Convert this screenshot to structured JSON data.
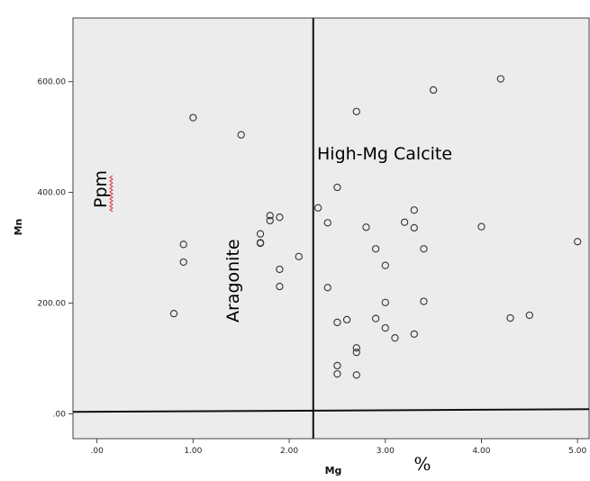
{
  "chart_data": {
    "type": "scatter",
    "title": "",
    "xlabel": "Mg",
    "ylabel": "Mn",
    "x_unit": "%",
    "y_unit": "Ppm",
    "xlim": [
      -0.25,
      5.12
    ],
    "ylim": [
      -45,
      715
    ],
    "x_ticks": [
      0,
      1,
      2,
      3,
      4,
      5
    ],
    "x_tick_labels": [
      ".00",
      "1.00",
      "2.00",
      "3.00",
      "4.00",
      "5.00"
    ],
    "y_ticks": [
      0,
      200,
      400,
      600
    ],
    "y_tick_labels": [
      ".00",
      "200.00",
      "400.00",
      "600.00"
    ],
    "grid": false,
    "reference_lines": {
      "vertical_x": 2.25,
      "horizontal_y": 5
    },
    "region_labels": [
      "High-Mg Calcite",
      "Aragonite"
    ],
    "colors": {
      "plot_background": "#ececec",
      "marker": "#333333",
      "ref_line": "#111111",
      "underline": "#e03030"
    },
    "points": [
      {
        "x": 1.0,
        "y": 535
      },
      {
        "x": 1.5,
        "y": 504
      },
      {
        "x": 0.9,
        "y": 306
      },
      {
        "x": 0.9,
        "y": 274
      },
      {
        "x": 0.8,
        "y": 181
      },
      {
        "x": 1.7,
        "y": 325
      },
      {
        "x": 1.7,
        "y": 309
      },
      {
        "x": 1.7,
        "y": 308
      },
      {
        "x": 1.8,
        "y": 358
      },
      {
        "x": 1.8,
        "y": 349
      },
      {
        "x": 1.9,
        "y": 355
      },
      {
        "x": 1.9,
        "y": 261
      },
      {
        "x": 1.9,
        "y": 230
      },
      {
        "x": 2.1,
        "y": 284
      },
      {
        "x": 2.3,
        "y": 372
      },
      {
        "x": 2.4,
        "y": 345
      },
      {
        "x": 2.4,
        "y": 228
      },
      {
        "x": 2.5,
        "y": 409
      },
      {
        "x": 2.5,
        "y": 165
      },
      {
        "x": 2.5,
        "y": 87
      },
      {
        "x": 2.5,
        "y": 72
      },
      {
        "x": 2.6,
        "y": 170
      },
      {
        "x": 2.7,
        "y": 546
      },
      {
        "x": 2.7,
        "y": 119
      },
      {
        "x": 2.7,
        "y": 111
      },
      {
        "x": 2.7,
        "y": 70
      },
      {
        "x": 2.8,
        "y": 337
      },
      {
        "x": 2.9,
        "y": 298
      },
      {
        "x": 2.9,
        "y": 172
      },
      {
        "x": 3.0,
        "y": 268
      },
      {
        "x": 3.0,
        "y": 201
      },
      {
        "x": 3.0,
        "y": 155
      },
      {
        "x": 3.1,
        "y": 137
      },
      {
        "x": 3.2,
        "y": 346
      },
      {
        "x": 3.3,
        "y": 368
      },
      {
        "x": 3.3,
        "y": 336
      },
      {
        "x": 3.3,
        "y": 144
      },
      {
        "x": 3.4,
        "y": 298
      },
      {
        "x": 3.4,
        "y": 203
      },
      {
        "x": 3.5,
        "y": 585
      },
      {
        "x": 4.0,
        "y": 338
      },
      {
        "x": 4.2,
        "y": 605
      },
      {
        "x": 4.3,
        "y": 173
      },
      {
        "x": 4.5,
        "y": 178
      },
      {
        "x": 5.0,
        "y": 311
      }
    ]
  }
}
